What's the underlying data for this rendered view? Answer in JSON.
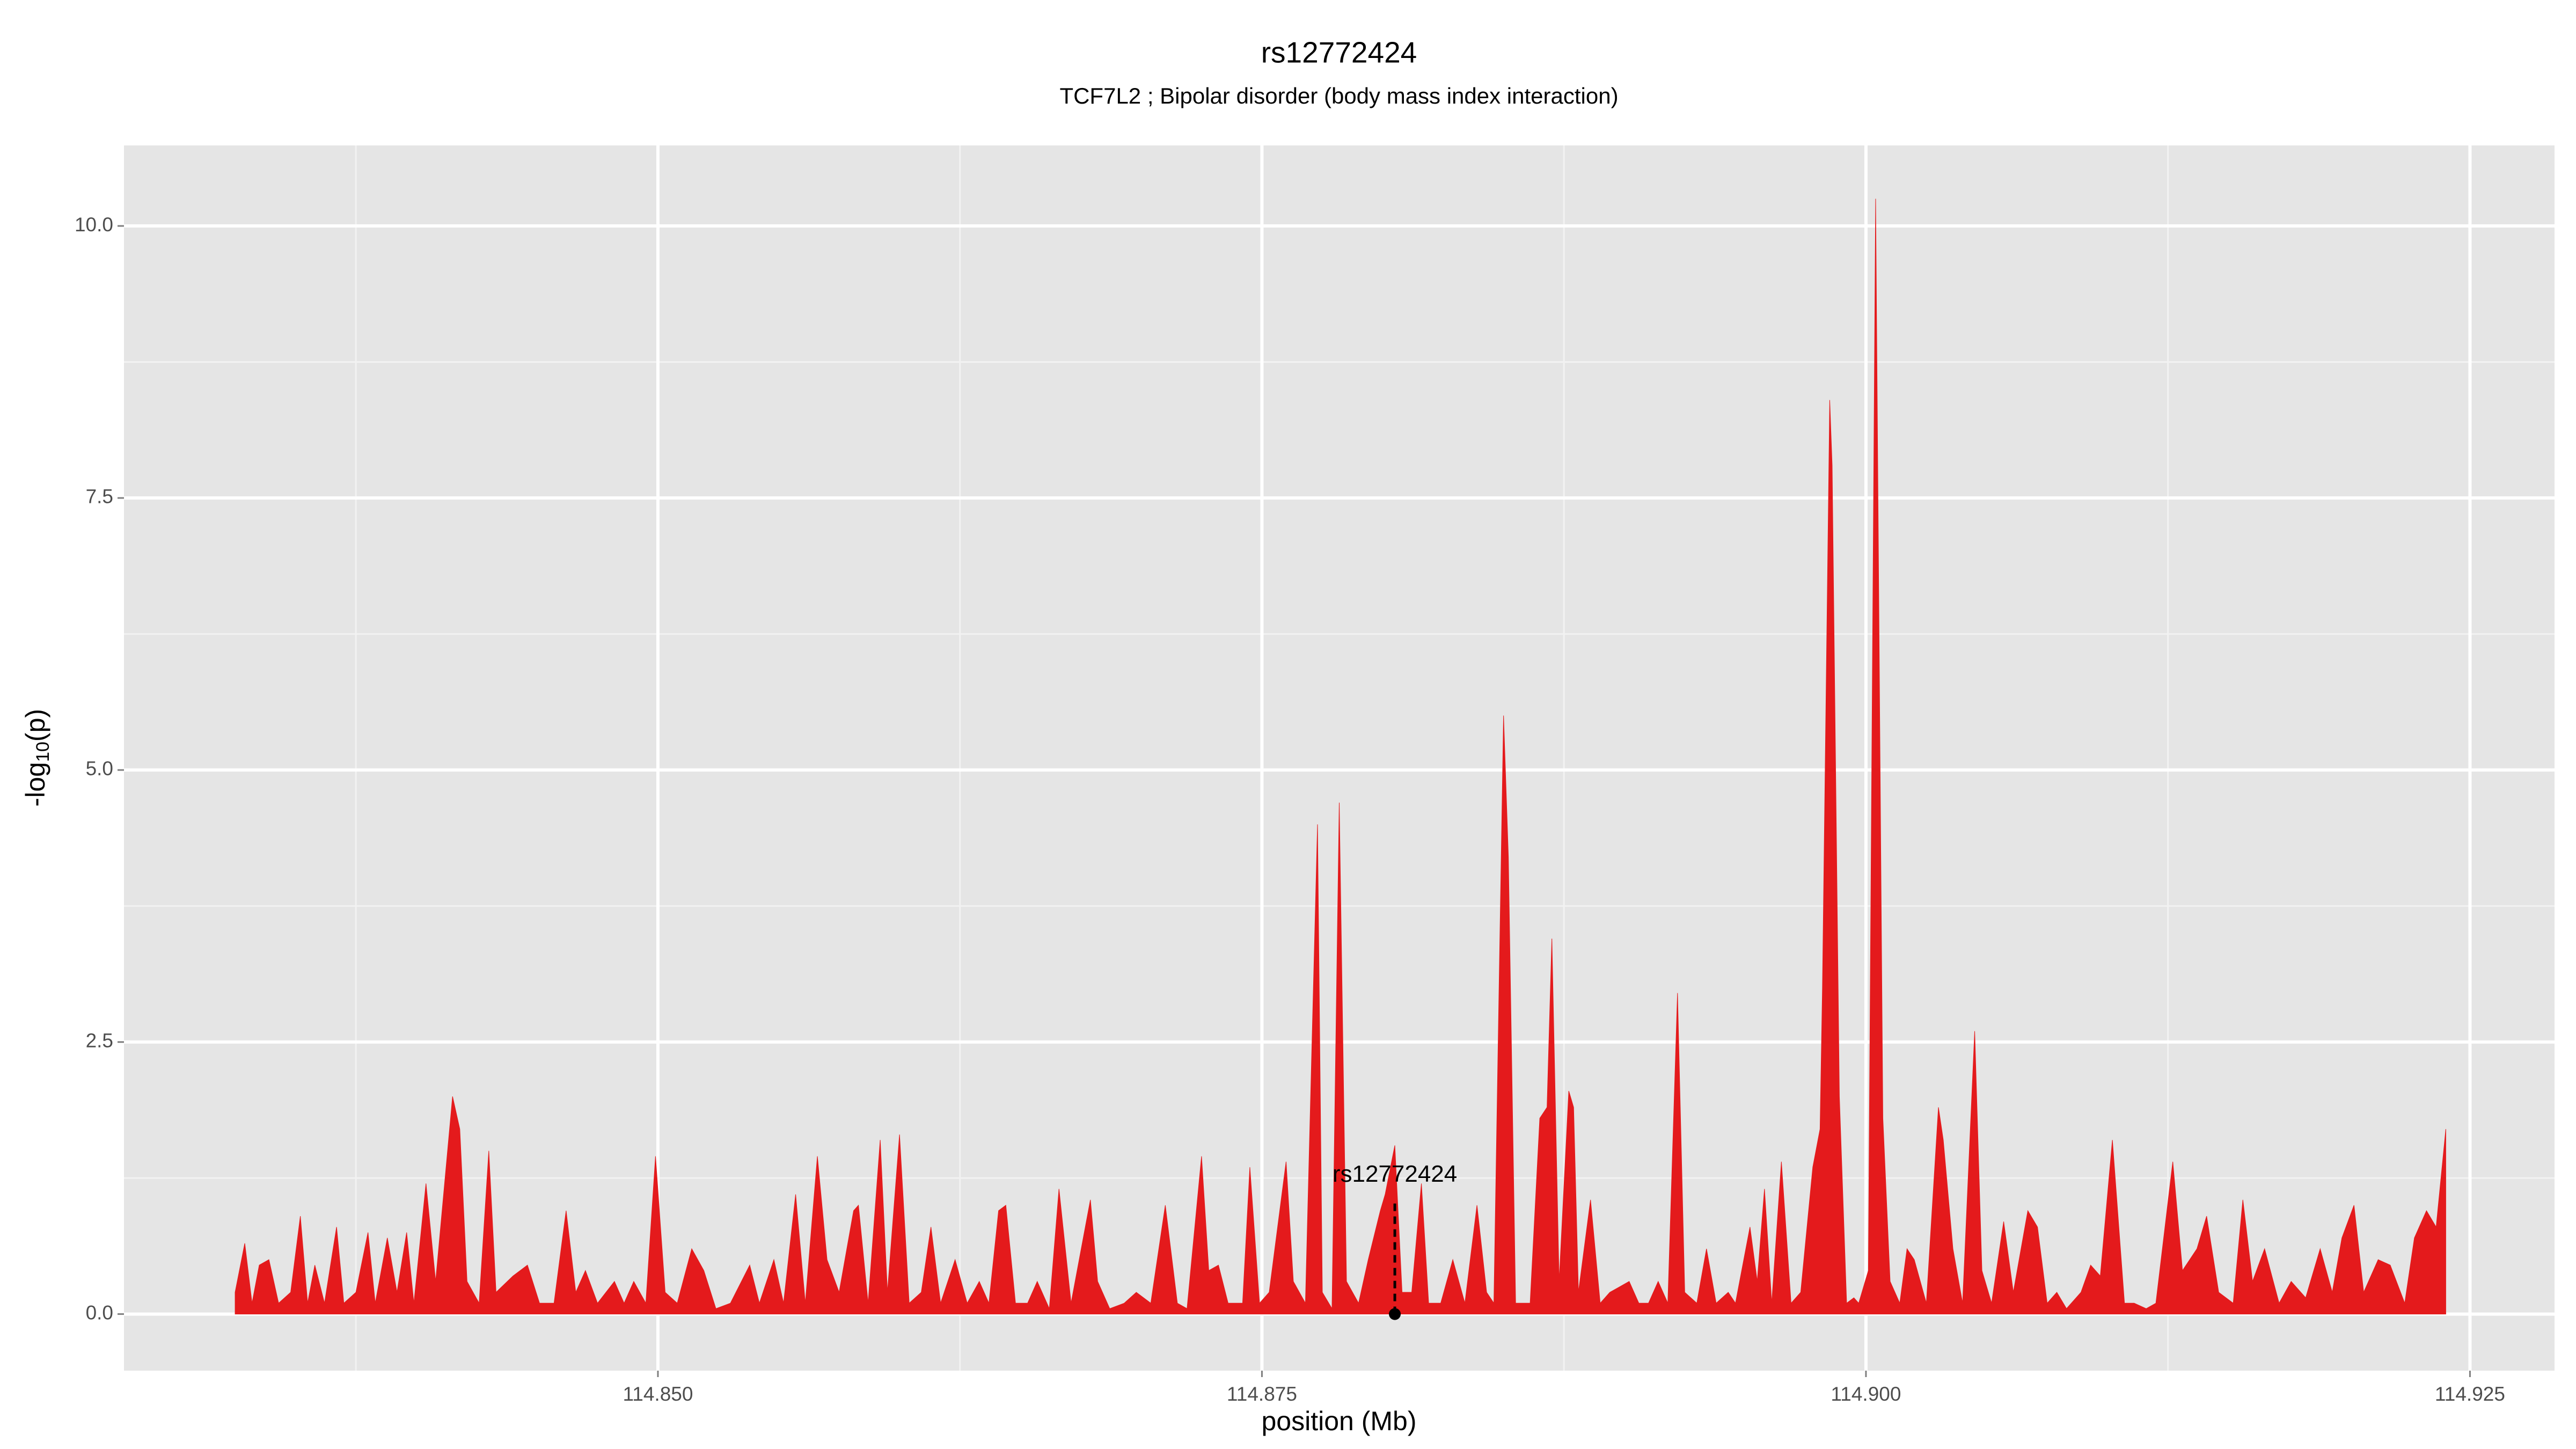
{
  "chart_data": {
    "type": "area",
    "title": "rs12772424",
    "subtitle": "TCF7L2 ; Bipolar disorder (body mass index interaction)",
    "xlabel": "position (Mb)",
    "ylabel_parts": [
      "-log",
      "10",
      "(p)"
    ],
    "color": "#e41a1c",
    "grid": true,
    "xlim": [
      114.8279,
      114.9285
    ],
    "ylim": [
      -0.52,
      10.74
    ],
    "xticks": [
      {
        "value": 114.85,
        "label": "114.850"
      },
      114.875,
      {
        "value": 114.9,
        "label": "114.900"
      },
      114.925
    ],
    "yticks": [
      {
        "value": 0,
        "label": "0.0"
      },
      2.5,
      {
        "value": 5,
        "label": "5.0"
      },
      7.5,
      {
        "value": 10,
        "label": "10.0"
      }
    ],
    "annotation": {
      "text": "rs12772424",
      "x": 114.8805,
      "y": 0
    },
    "x": [
      114.8325,
      114.8329,
      114.8332,
      114.8335,
      114.8339,
      114.8343,
      114.8348,
      114.8352,
      114.8355,
      114.8358,
      114.8362,
      114.8367,
      114.837,
      114.8375,
      114.838,
      114.8383,
      114.8388,
      114.8392,
      114.8396,
      114.8399,
      114.8404,
      114.8408,
      114.8415,
      114.8418,
      114.8421,
      114.8426,
      114.843,
      114.8433,
      114.844,
      114.8446,
      114.8451,
      114.8457,
      114.8462,
      114.8466,
      114.847,
      114.8475,
      114.8482,
      114.8486,
      114.849,
      114.8495,
      114.8499,
      114.8503,
      114.8508,
      114.8514,
      114.8519,
      114.8524,
      114.853,
      114.8538,
      114.8542,
      114.8548,
      114.8552,
      114.8557,
      114.8561,
      114.8566,
      114.857,
      114.8575,
      114.8581,
      114.8583,
      114.8587,
      114.8592,
      114.8595,
      114.86,
      114.8604,
      114.8609,
      114.8613,
      114.8617,
      114.8623,
      114.8628,
      114.8633,
      114.8637,
      114.8641,
      114.8644,
      114.8648,
      114.8653,
      114.8657,
      114.8662,
      114.8666,
      114.8671,
      114.8679,
      114.8682,
      114.8687,
      114.8693,
      114.8698,
      114.8704,
      114.871,
      114.8715,
      114.8719,
      114.8725,
      114.8728,
      114.8732,
      114.8736,
      114.8742,
      114.8745,
      114.8749,
      114.8753,
      114.876,
      114.8763,
      114.8768,
      114.8773,
      114.8775,
      114.8779,
      114.8782,
      114.8785,
      114.879,
      114.8794,
      114.8799,
      114.8801,
      114.8805,
      114.8808,
      114.8812,
      114.8816,
      114.8819,
      114.8824,
      114.8829,
      114.8834,
      114.8839,
      114.8843,
      114.8846,
      114.885,
      114.8852,
      114.8855,
      114.8861,
      114.8865,
      114.8868,
      114.887,
      114.8873,
      114.8877,
      114.8879,
      114.8881,
      114.8886,
      114.889,
      114.8894,
      114.8898,
      114.8902,
      114.8906,
      114.891,
      114.8914,
      114.8918,
      114.8922,
      114.8925,
      114.893,
      114.8934,
      114.8938,
      114.8943,
      114.8946,
      114.8952,
      114.8955,
      114.8958,
      114.8961,
      114.8965,
      114.8969,
      114.8973,
      114.8978,
      114.8981,
      114.8982,
      114.8985,
      114.8986,
      114.8989,
      114.8992,
      114.8995,
      114.8997,
      114.9001,
      114.9004,
      114.9007,
      114.901,
      114.9014,
      114.9017,
      114.902,
      114.9025,
      114.903,
      114.9032,
      114.9036,
      114.904,
      114.9045,
      114.9048,
      114.9052,
      114.9057,
      114.9061,
      114.9067,
      114.9071,
      114.9075,
      114.9079,
      114.9083,
      114.9089,
      114.9093,
      114.9097,
      114.9102,
      114.9107,
      114.9111,
      114.9116,
      114.912,
      114.9127,
      114.9131,
      114.9137,
      114.9141,
      114.9146,
      114.9152,
      114.9156,
      114.916,
      114.9165,
      114.9171,
      114.9176,
      114.9182,
      114.9188,
      114.9193,
      114.9197,
      114.9202,
      114.9206,
      114.9212,
      114.9217,
      114.9223,
      114.9227,
      114.9232,
      114.9236,
      114.924
    ],
    "values": [
      0.2,
      0.65,
      0.1,
      0.45,
      0.5,
      0.1,
      0.2,
      0.9,
      0.1,
      0.45,
      0.1,
      0.8,
      0.1,
      0.2,
      0.75,
      0.1,
      0.7,
      0.2,
      0.75,
      0.1,
      1.2,
      0.3,
      2.0,
      1.7,
      0.3,
      0.1,
      1.5,
      0.2,
      0.35,
      0.45,
      0.1,
      0.1,
      0.95,
      0.2,
      0.4,
      0.1,
      0.3,
      0.1,
      0.3,
      0.1,
      1.45,
      0.2,
      0.1,
      0.6,
      0.4,
      0.05,
      0.1,
      0.45,
      0.1,
      0.5,
      0.1,
      1.1,
      0.1,
      1.45,
      0.5,
      0.2,
      0.95,
      1.0,
      0.1,
      1.6,
      0.2,
      1.65,
      0.1,
      0.2,
      0.8,
      0.1,
      0.5,
      0.1,
      0.3,
      0.1,
      0.95,
      1.0,
      0.1,
      0.1,
      0.3,
      0.05,
      1.15,
      0.1,
      1.05,
      0.3,
      0.05,
      0.1,
      0.2,
      0.1,
      1.0,
      0.1,
      0.05,
      1.45,
      0.4,
      0.45,
      0.1,
      0.1,
      1.35,
      0.1,
      0.2,
      1.4,
      0.3,
      0.1,
      4.5,
      0.2,
      0.05,
      4.7,
      0.3,
      0.1,
      0.5,
      0.95,
      1.1,
      1.55,
      0.2,
      0.2,
      1.2,
      0.1,
      0.1,
      0.5,
      0.1,
      1.0,
      0.2,
      0.1,
      5.5,
      4.2,
      0.1,
      0.1,
      1.8,
      1.9,
      3.45,
      0.3,
      2.05,
      1.9,
      0.2,
      1.05,
      0.1,
      0.2,
      0.25,
      0.3,
      0.1,
      0.1,
      0.3,
      0.1,
      2.95,
      0.2,
      0.1,
      0.6,
      0.1,
      0.2,
      0.1,
      0.8,
      0.3,
      1.15,
      0.1,
      1.4,
      0.1,
      0.2,
      1.35,
      1.7,
      3.0,
      8.4,
      7.8,
      2.0,
      0.1,
      0.15,
      0.1,
      0.4,
      10.25,
      1.8,
      0.3,
      0.1,
      0.6,
      0.5,
      0.1,
      1.9,
      1.6,
      0.6,
      0.1,
      2.6,
      0.4,
      0.1,
      0.85,
      0.2,
      0.95,
      0.8,
      0.1,
      0.2,
      0.05,
      0.2,
      0.45,
      0.35,
      1.6,
      0.1,
      0.1,
      0.05,
      0.1,
      1.4,
      0.4,
      0.6,
      0.9,
      0.2,
      0.1,
      1.05,
      0.3,
      0.6,
      0.1,
      0.3,
      0.15,
      0.6,
      0.2,
      0.7,
      1.0,
      0.2,
      0.5,
      0.45,
      0.1,
      0.7,
      0.95,
      0.8,
      1.7
    ]
  }
}
